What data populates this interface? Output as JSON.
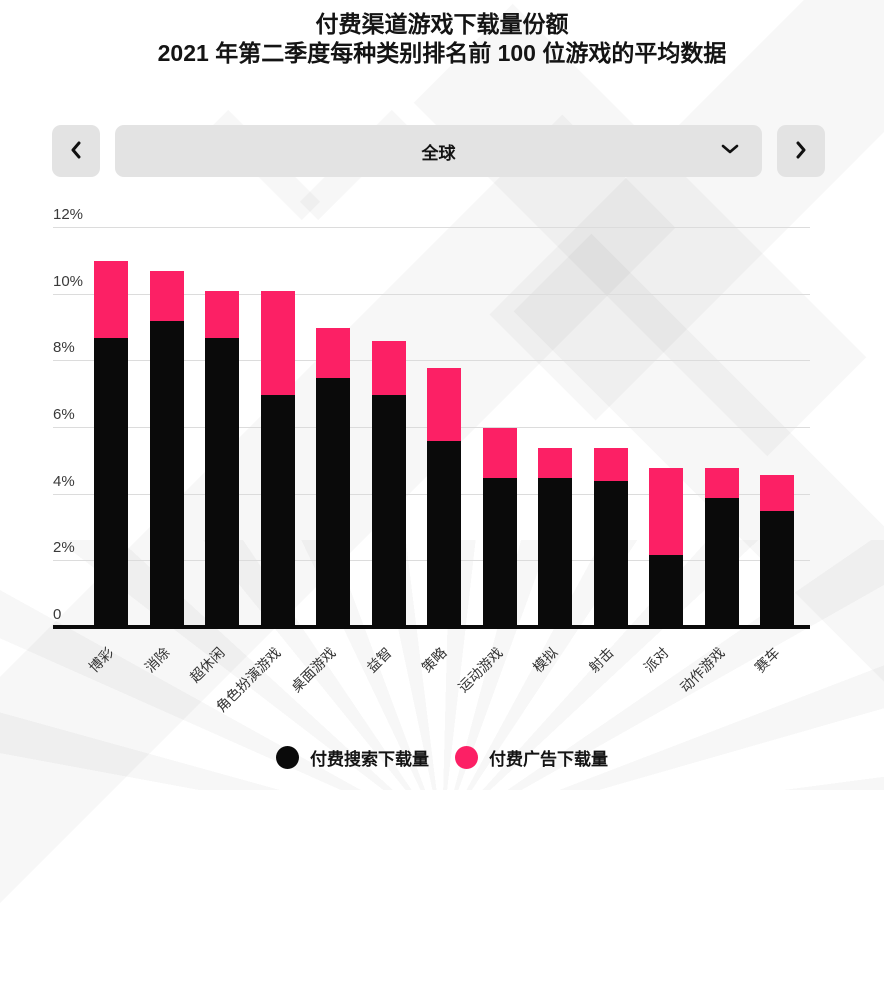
{
  "header": {
    "title_line1": "付费渠道游戏下载量份额",
    "title_line2": "2021 年第二季度每种类别排名前 100 位游戏的平均数据"
  },
  "carousel": {
    "prev_icon": "chevron-left",
    "next_icon": "chevron-right",
    "dropdown_icon": "chevron-down",
    "selected_region": "全球"
  },
  "chart_data": {
    "type": "bar",
    "stacked": true,
    "title": "付费渠道游戏下载量份额",
    "xlabel": "",
    "ylabel": "",
    "ylim": [
      0,
      12.6
    ],
    "grid": true,
    "legend_position": "bottom",
    "yticks": [
      {
        "value": 12,
        "label": "12%"
      },
      {
        "value": 10,
        "label": "10%"
      },
      {
        "value": 8,
        "label": "8%"
      },
      {
        "value": 6,
        "label": "6%"
      },
      {
        "value": 4,
        "label": "4%"
      },
      {
        "value": 2,
        "label": "2%"
      },
      {
        "value": 0,
        "label": "0"
      }
    ],
    "categories": [
      "博彩",
      "消除",
      "超休闲",
      "角色扮演游戏",
      "桌面游戏",
      "益智",
      "策略",
      "运动游戏",
      "模拟",
      "射击",
      "派对",
      "动作游戏",
      "赛车"
    ],
    "series": [
      {
        "name": "付费搜索下载量",
        "color": "#0a0a0a",
        "values": [
          8.7,
          9.2,
          8.7,
          7.0,
          7.5,
          7.0,
          5.6,
          4.5,
          4.5,
          4.4,
          2.2,
          3.9,
          3.5
        ]
      },
      {
        "name": "付费广告下载量",
        "color": "#fc2065",
        "values": [
          2.3,
          1.5,
          1.4,
          3.1,
          1.5,
          1.6,
          2.2,
          1.5,
          0.9,
          1.0,
          2.6,
          0.9,
          1.1
        ]
      }
    ],
    "totals": [
      11.0,
      10.7,
      10.1,
      10.1,
      9.0,
      8.6,
      7.8,
      6.0,
      5.4,
      5.4,
      4.8,
      4.8,
      4.6
    ]
  },
  "colors": {
    "paid_search": "#0a0a0a",
    "paid_ads": "#fc2065",
    "control_bg": "#e3e3e3",
    "gridline": "#dcdcdc"
  }
}
